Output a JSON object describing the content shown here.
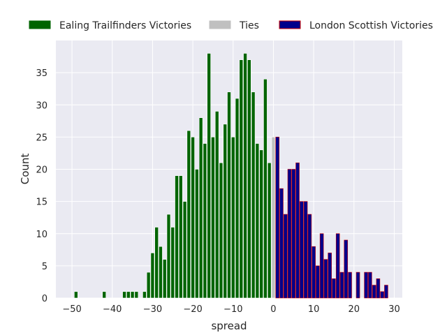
{
  "chart_data": {
    "type": "bar",
    "title": "",
    "xlabel": "spread",
    "ylabel": "Count",
    "xlim": [
      -54,
      32
    ],
    "ylim": [
      0,
      40
    ],
    "xticks": [
      -50,
      -40,
      -30,
      -20,
      -10,
      0,
      10,
      20,
      30
    ],
    "yticks": [
      0,
      5,
      10,
      15,
      20,
      25,
      30,
      35
    ],
    "grid": true,
    "legend_position": "top",
    "series": [
      {
        "name": "Ealing Trailfinders Victories",
        "color": "#006400",
        "edgecolor": "#ffffff",
        "x": [
          -49,
          -42,
          -37,
          -36,
          -35,
          -34,
          -32,
          -31,
          -30,
          -29,
          -28,
          -27,
          -26,
          -25,
          -24,
          -23,
          -22,
          -21,
          -20,
          -19,
          -18,
          -17,
          -16,
          -15,
          -14,
          -13,
          -12,
          -11,
          -10,
          -9,
          -8,
          -7,
          -6,
          -5,
          -4,
          -3,
          -2,
          -1
        ],
        "values": [
          1,
          1,
          1,
          1,
          1,
          1,
          1,
          4,
          7,
          11,
          8,
          6,
          13,
          11,
          19,
          19,
          15,
          26,
          25,
          20,
          28,
          24,
          38,
          25,
          29,
          21,
          27,
          32,
          25,
          31,
          37,
          38,
          37,
          32,
          24,
          23,
          34,
          21
        ]
      },
      {
        "name": "Ties",
        "color": "#c0c0c0",
        "edgecolor": "#ffffff",
        "x": [
          0
        ],
        "values": [
          25
        ]
      },
      {
        "name": "London Scottish Victories",
        "color": "#00008b",
        "edgecolor": "#cc0000",
        "x": [
          1,
          2,
          3,
          4,
          5,
          6,
          7,
          8,
          9,
          10,
          11,
          12,
          13,
          14,
          15,
          16,
          17,
          18,
          19,
          20,
          21,
          22,
          23,
          24,
          25,
          26,
          27,
          28
        ],
        "values": [
          25,
          17,
          13,
          20,
          20,
          21,
          15,
          15,
          13,
          8,
          5,
          10,
          6,
          7,
          3,
          10,
          4,
          9,
          4,
          0,
          4,
          0,
          4,
          4,
          2,
          3,
          1,
          2
        ]
      }
    ]
  }
}
